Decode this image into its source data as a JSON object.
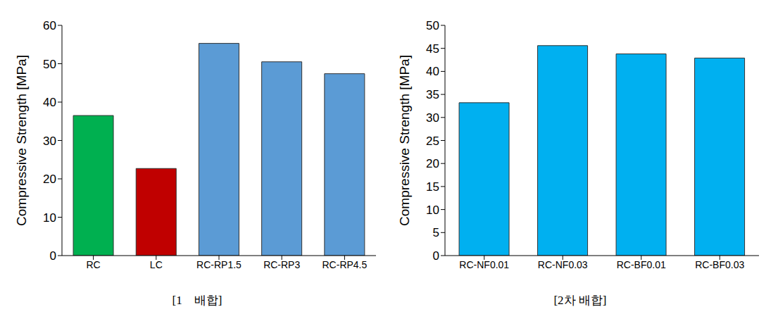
{
  "chart_data": [
    {
      "type": "bar",
      "title": "[1    배합]",
      "y_label": "Compressive Strength [MPa]",
      "categories": [
        "RC",
        "LC",
        "RC-RP1.5",
        "RC-RP3",
        "RC-RP4.5"
      ],
      "values": [
        36.5,
        22.7,
        55.3,
        50.5,
        47.4
      ],
      "colors": [
        "#00b050",
        "#c00000",
        "#5b9bd5",
        "#5b9bd5",
        "#5b9bd5"
      ],
      "ylim": [
        0,
        60
      ],
      "yticks": [
        0,
        10,
        20,
        30,
        40,
        50,
        60
      ],
      "grid": false
    },
    {
      "type": "bar",
      "title": "[2차 배합]",
      "y_label": "Compressive Strength [MPa]",
      "categories": [
        "RC-NF0.01",
        "RC-NF0.03",
        "RC-BF0.01",
        "RC-BF0.03"
      ],
      "values": [
        33.2,
        45.6,
        43.8,
        42.9
      ],
      "colors": [
        "#00b0f0",
        "#00b0f0",
        "#00b0f0",
        "#00b0f0"
      ],
      "ylim": [
        0,
        50
      ],
      "yticks": [
        0,
        5,
        10,
        15,
        20,
        25,
        30,
        35,
        40,
        45,
        50
      ],
      "grid": false
    }
  ]
}
